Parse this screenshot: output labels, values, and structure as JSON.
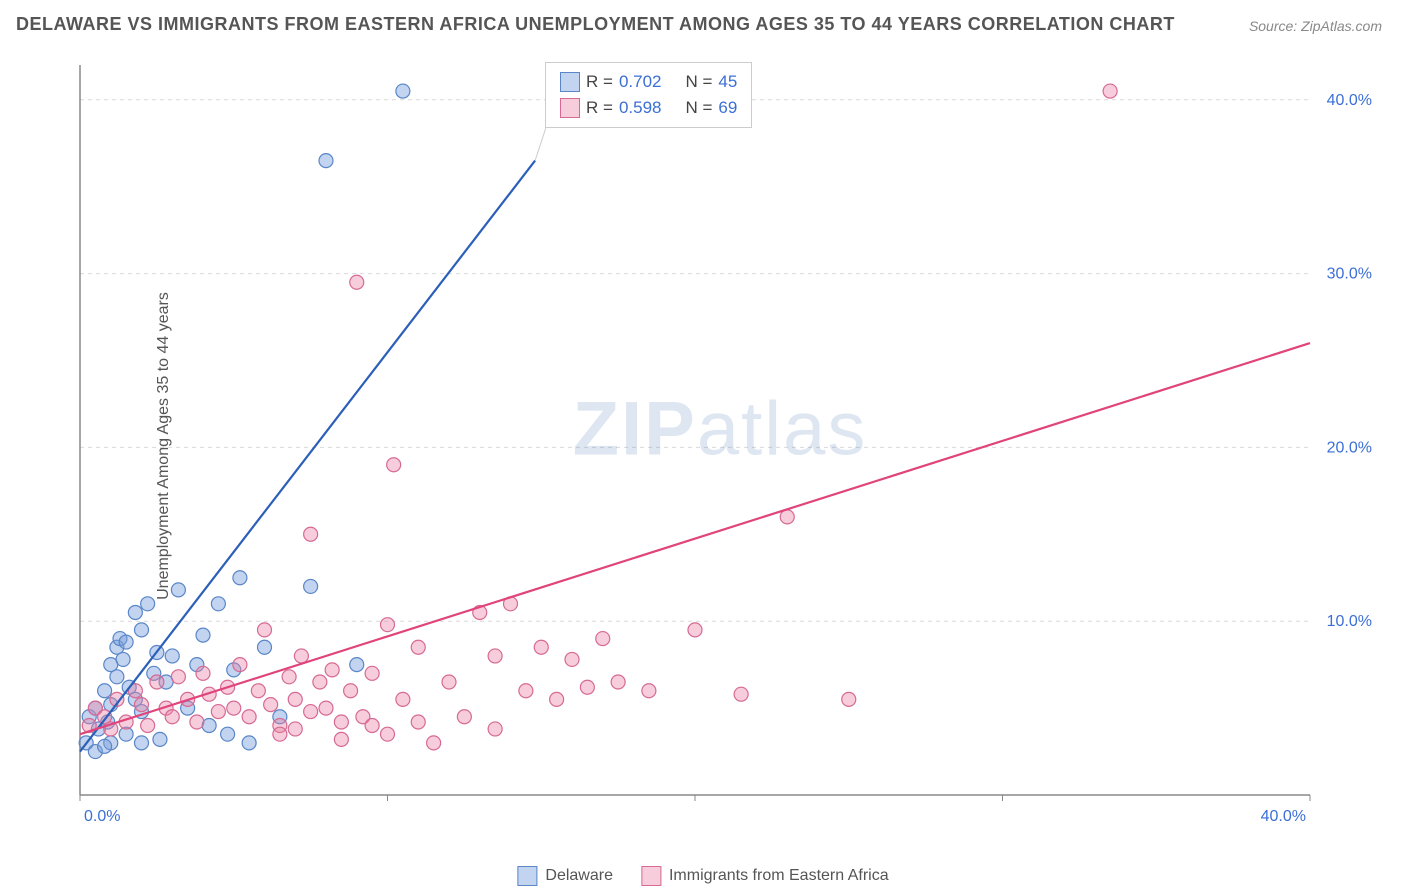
{
  "title": "DELAWARE VS IMMIGRANTS FROM EASTERN AFRICA UNEMPLOYMENT AMONG AGES 35 TO 44 YEARS CORRELATION CHART",
  "source": "Source: ZipAtlas.com",
  "ylabel": "Unemployment Among Ages 35 to 44 years",
  "watermark_a": "ZIP",
  "watermark_b": "atlas",
  "chart": {
    "type": "scatter",
    "xlim": [
      0,
      40
    ],
    "ylim": [
      0,
      42
    ],
    "xtick_positions": [
      0,
      10,
      20,
      30,
      40
    ],
    "xtick_labels": [
      "0.0%",
      "",
      "",
      "",
      "40.0%"
    ],
    "ytick_positions": [
      10,
      20,
      30,
      40
    ],
    "ytick_labels": [
      "10.0%",
      "20.0%",
      "30.0%",
      "40.0%"
    ],
    "grid_color": "#d9d9d9",
    "axis_color": "#888888",
    "background_color": "#ffffff",
    "marker_radius": 7,
    "marker_stroke_width": 1.2,
    "line_width": 2.2
  },
  "series": [
    {
      "name": "Delaware",
      "fill_color": "rgba(120,160,220,0.45)",
      "stroke_color": "#5a86c8",
      "line_color": "#2b5fb8",
      "R": "0.702",
      "N": "45",
      "regression": {
        "x1": 0,
        "y1": 2.5,
        "x2": 14.8,
        "y2": 36.5
      },
      "points": [
        [
          0.2,
          3.0
        ],
        [
          0.3,
          4.5
        ],
        [
          0.5,
          5.0
        ],
        [
          0.6,
          3.8
        ],
        [
          0.8,
          6.0
        ],
        [
          0.9,
          4.2
        ],
        [
          1.0,
          7.5
        ],
        [
          1.0,
          5.2
        ],
        [
          1.2,
          8.5
        ],
        [
          1.2,
          6.8
        ],
        [
          1.3,
          9.0
        ],
        [
          1.4,
          7.8
        ],
        [
          1.5,
          8.8
        ],
        [
          1.6,
          6.2
        ],
        [
          1.8,
          5.5
        ],
        [
          1.8,
          10.5
        ],
        [
          2.0,
          9.5
        ],
        [
          2.0,
          4.8
        ],
        [
          2.2,
          11.0
        ],
        [
          2.4,
          7.0
        ],
        [
          2.5,
          8.2
        ],
        [
          2.6,
          3.2
        ],
        [
          2.8,
          6.5
        ],
        [
          3.0,
          8.0
        ],
        [
          3.2,
          11.8
        ],
        [
          3.5,
          5.0
        ],
        [
          3.8,
          7.5
        ],
        [
          4.0,
          9.2
        ],
        [
          4.2,
          4.0
        ],
        [
          4.5,
          11.0
        ],
        [
          4.8,
          3.5
        ],
        [
          5.0,
          7.2
        ],
        [
          5.2,
          12.5
        ],
        [
          5.5,
          3.0
        ],
        [
          6.0,
          8.5
        ],
        [
          6.5,
          4.5
        ],
        [
          7.5,
          12.0
        ],
        [
          8.0,
          36.5
        ],
        [
          9.0,
          7.5
        ],
        [
          10.5,
          40.5
        ],
        [
          1.0,
          3.0
        ],
        [
          0.5,
          2.5
        ],
        [
          0.8,
          2.8
        ],
        [
          1.5,
          3.5
        ],
        [
          2.0,
          3.0
        ]
      ]
    },
    {
      "name": "Immigrants from Eastern Africa",
      "fill_color": "rgba(235,130,165,0.40)",
      "stroke_color": "#d66a94",
      "line_color": "#e0447a",
      "R": "0.598",
      "N": "69",
      "regression": {
        "x1": 0,
        "y1": 3.5,
        "x2": 40,
        "y2": 26.0
      },
      "points": [
        [
          0.3,
          4.0
        ],
        [
          0.5,
          5.0
        ],
        [
          0.8,
          4.5
        ],
        [
          1.0,
          3.8
        ],
        [
          1.2,
          5.5
        ],
        [
          1.5,
          4.2
        ],
        [
          1.8,
          6.0
        ],
        [
          2.0,
          5.2
        ],
        [
          2.2,
          4.0
        ],
        [
          2.5,
          6.5
        ],
        [
          2.8,
          5.0
        ],
        [
          3.0,
          4.5
        ],
        [
          3.2,
          6.8
        ],
        [
          3.5,
          5.5
        ],
        [
          3.8,
          4.2
        ],
        [
          4.0,
          7.0
        ],
        [
          4.2,
          5.8
        ],
        [
          4.5,
          4.8
        ],
        [
          4.8,
          6.2
        ],
        [
          5.0,
          5.0
        ],
        [
          5.2,
          7.5
        ],
        [
          5.5,
          4.5
        ],
        [
          5.8,
          6.0
        ],
        [
          6.0,
          9.5
        ],
        [
          6.2,
          5.2
        ],
        [
          6.5,
          4.0
        ],
        [
          6.8,
          6.8
        ],
        [
          7.0,
          5.5
        ],
        [
          7.2,
          8.0
        ],
        [
          7.5,
          4.8
        ],
        [
          7.8,
          6.5
        ],
        [
          8.0,
          5.0
        ],
        [
          8.2,
          7.2
        ],
        [
          8.5,
          4.2
        ],
        [
          8.8,
          6.0
        ],
        [
          9.0,
          29.5
        ],
        [
          9.2,
          4.5
        ],
        [
          9.5,
          7.0
        ],
        [
          10.0,
          9.8
        ],
        [
          10.2,
          19.0
        ],
        [
          10.5,
          5.5
        ],
        [
          7.5,
          15.0
        ],
        [
          11.0,
          8.5
        ],
        [
          11.5,
          3.0
        ],
        [
          12.0,
          6.5
        ],
        [
          13.0,
          10.5
        ],
        [
          13.5,
          8.0
        ],
        [
          14.0,
          11.0
        ],
        [
          14.5,
          6.0
        ],
        [
          15.0,
          8.5
        ],
        [
          15.5,
          5.5
        ],
        [
          16.0,
          7.8
        ],
        [
          16.5,
          6.2
        ],
        [
          17.0,
          9.0
        ],
        [
          17.5,
          6.5
        ],
        [
          20.0,
          9.5
        ],
        [
          21.5,
          5.8
        ],
        [
          23.0,
          16.0
        ],
        [
          25.0,
          5.5
        ],
        [
          33.5,
          40.5
        ],
        [
          6.5,
          3.5
        ],
        [
          7.0,
          3.8
        ],
        [
          8.5,
          3.2
        ],
        [
          9.5,
          4.0
        ],
        [
          10.0,
          3.5
        ],
        [
          11.0,
          4.2
        ],
        [
          12.5,
          4.5
        ],
        [
          13.5,
          3.8
        ],
        [
          18.5,
          6.0
        ]
      ]
    }
  ],
  "stats_legend": {
    "R_label": "R =",
    "N_label": "N ="
  },
  "bottom_legend": {
    "items": [
      "Delaware",
      "Immigrants from Eastern Africa"
    ]
  }
}
